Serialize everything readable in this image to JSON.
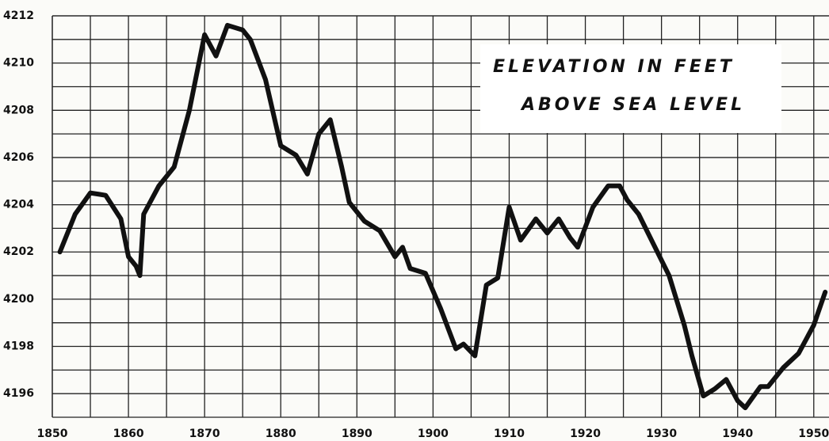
{
  "chart_data": {
    "type": "line",
    "annotation": [
      "ELEVATION IN FEET",
      "ABOVE SEA LEVEL"
    ],
    "xlim": [
      1850,
      1952
    ],
    "ylim": [
      4195,
      4212
    ],
    "xticks": [
      1850,
      1860,
      1870,
      1880,
      1890,
      1900,
      1910,
      1920,
      1930,
      1940,
      1950
    ],
    "x_minor_ticks": [
      1855,
      1865,
      1875,
      1885,
      1895,
      1905,
      1915,
      1925,
      1935,
      1945
    ],
    "yticks": [
      4196,
      4198,
      4200,
      4202,
      4204,
      4206,
      4208,
      4210,
      4212
    ],
    "y_minor_ticks": [
      4197,
      4199,
      4201,
      4203,
      4205,
      4207,
      4209,
      4211
    ],
    "grid": true,
    "series": [
      {
        "color": "#111111",
        "x": [
          1851,
          1853,
          1855,
          1857,
          1859,
          1860,
          1861,
          1861.5,
          1862,
          1864,
          1866,
          1868,
          1870,
          1871.5,
          1873,
          1875,
          1876,
          1878,
          1880,
          1882,
          1883.5,
          1885,
          1886.5,
          1888,
          1889,
          1891,
          1893,
          1895,
          1896,
          1897,
          1899,
          1901,
          1903,
          1904,
          1905.5,
          1907,
          1908.5,
          1910,
          1911.5,
          1913.5,
          1915,
          1916.5,
          1918,
          1919,
          1921,
          1923,
          1924.5,
          1925.5,
          1927,
          1929,
          1931,
          1933,
          1934,
          1935.5,
          1937,
          1938.5,
          1940,
          1941,
          1943,
          1944,
          1946,
          1948,
          1950,
          1951.5
        ],
        "values": [
          4202.0,
          4203.6,
          4204.5,
          4204.4,
          4203.4,
          4201.8,
          4201.4,
          4201.0,
          4203.6,
          4204.8,
          4205.6,
          4208.0,
          4211.2,
          4210.3,
          4211.6,
          4211.4,
          4211.0,
          4209.3,
          4206.5,
          4206.1,
          4205.3,
          4207.0,
          4207.6,
          4205.6,
          4204.1,
          4203.3,
          4202.9,
          4201.8,
          4202.2,
          4201.3,
          4201.1,
          4199.6,
          4197.9,
          4198.1,
          4197.6,
          4200.6,
          4200.9,
          4203.9,
          4202.5,
          4203.4,
          4202.8,
          4203.4,
          4202.6,
          4202.2,
          4203.9,
          4204.8,
          4204.8,
          4204.2,
          4203.6,
          4202.3,
          4201.0,
          4198.9,
          4197.6,
          4195.9,
          4196.2,
          4196.6,
          4195.7,
          4195.4,
          4196.3,
          4196.3,
          4197.1,
          4197.7,
          4198.9,
          4200.3
        ]
      }
    ]
  }
}
